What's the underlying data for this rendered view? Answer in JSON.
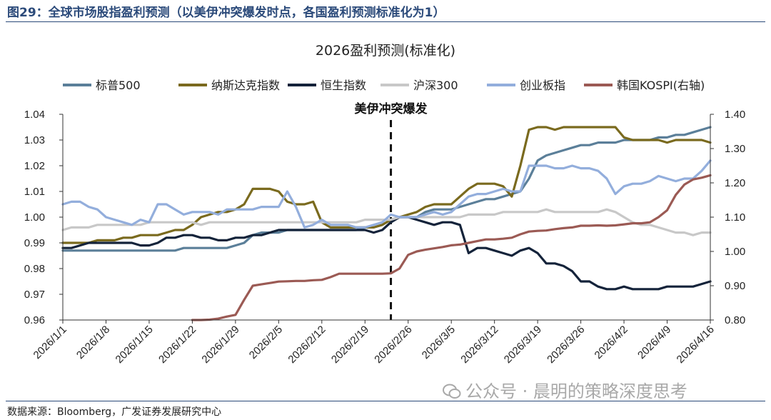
{
  "figure": {
    "title": "图29：全球市场股指盈利预测（以美伊冲突爆发时点，各国盈利预测标准化为1）",
    "source": "数据来源：Bloomberg，广发证券发展研究中心",
    "watermark": "公众号 · 晨明的策略深度思考"
  },
  "chart_data": {
    "type": "line",
    "title": "2026盈利预测(标准化)",
    "event_label": "美伊冲突爆发",
    "event_date_index": 38,
    "x_tick_labels": [
      "2026/1/1",
      "2026/1/8",
      "2026/1/15",
      "2026/1/22",
      "2026/1/29",
      "2026/2/5",
      "2026/2/12",
      "2026/2/19",
      "2026/2/26",
      "2026/3/5",
      "2026/3/12",
      "2026/3/19",
      "2026/3/26",
      "2026/4/2",
      "2026/4/9",
      "2026/4/16"
    ],
    "x_tick_indices": [
      0,
      5,
      10,
      15,
      20,
      25,
      30,
      35,
      40,
      45,
      50,
      55,
      60,
      65,
      70,
      75
    ],
    "x_count": 76,
    "y_left": {
      "min": 0.96,
      "max": 1.04,
      "ticks": [
        "0.96",
        "0.97",
        "0.98",
        "0.99",
        "1.00",
        "1.01",
        "1.02",
        "1.03",
        "1.04"
      ]
    },
    "y_right": {
      "min": 0.8,
      "max": 1.4,
      "ticks": [
        "0.80",
        "0.90",
        "1.00",
        "1.10",
        "1.20",
        "1.30",
        "1.40"
      ]
    },
    "series": [
      {
        "name": "标普500",
        "color": "#5b7f99",
        "axis": "left",
        "values": [
          0.987,
          0.987,
          0.987,
          0.987,
          0.987,
          0.987,
          0.987,
          0.987,
          0.987,
          0.987,
          0.987,
          0.987,
          0.987,
          0.987,
          0.988,
          0.988,
          0.988,
          0.988,
          0.988,
          0.988,
          0.989,
          0.99,
          0.993,
          0.994,
          0.994,
          0.994,
          0.995,
          0.995,
          0.995,
          0.995,
          0.995,
          0.995,
          0.995,
          0.995,
          0.995,
          0.996,
          0.996,
          0.997,
          0.999,
          1.0,
          1.0,
          1.0,
          1.002,
          1.003,
          1.003,
          1.003,
          1.004,
          1.005,
          1.006,
          1.007,
          1.007,
          1.008,
          1.009,
          1.01,
          1.015,
          1.022,
          1.024,
          1.025,
          1.026,
          1.027,
          1.028,
          1.028,
          1.029,
          1.029,
          1.029,
          1.03,
          1.03,
          1.03,
          1.03,
          1.031,
          1.031,
          1.032,
          1.032,
          1.033,
          1.034,
          1.035
        ]
      },
      {
        "name": "纳斯达克指数",
        "color": "#7a6a1e",
        "axis": "left",
        "values": [
          0.99,
          0.99,
          0.99,
          0.99,
          0.991,
          0.991,
          0.991,
          0.992,
          0.992,
          0.993,
          0.993,
          0.993,
          0.994,
          0.995,
          0.995,
          0.997,
          1.0,
          1.001,
          1.002,
          1.002,
          1.003,
          1.005,
          1.011,
          1.011,
          1.011,
          1.01,
          1.006,
          1.005,
          1.005,
          1.006,
          0.998,
          0.996,
          0.996,
          0.996,
          0.996,
          0.996,
          0.996,
          0.997,
          0.999,
          1.0,
          1.001,
          1.002,
          1.004,
          1.005,
          1.005,
          1.005,
          1.008,
          1.011,
          1.013,
          1.013,
          1.013,
          1.012,
          1.008,
          1.02,
          1.034,
          1.035,
          1.035,
          1.034,
          1.035,
          1.035,
          1.035,
          1.035,
          1.035,
          1.035,
          1.035,
          1.031,
          1.03,
          1.03,
          1.03,
          1.03,
          1.029,
          1.03,
          1.03,
          1.03,
          1.03,
          1.029
        ]
      },
      {
        "name": "恒生指数",
        "color": "#14233a",
        "axis": "left",
        "values": [
          0.988,
          0.988,
          0.989,
          0.99,
          0.99,
          0.99,
          0.99,
          0.99,
          0.99,
          0.989,
          0.989,
          0.99,
          0.992,
          0.992,
          0.993,
          0.993,
          0.992,
          0.992,
          0.991,
          0.991,
          0.992,
          0.992,
          0.993,
          0.993,
          0.994,
          0.995,
          0.995,
          0.995,
          0.995,
          0.995,
          0.995,
          0.995,
          0.995,
          0.995,
          0.995,
          0.995,
          0.994,
          0.995,
          0.998,
          1.0,
          1.0,
          0.999,
          0.998,
          0.997,
          0.998,
          0.998,
          0.997,
          0.986,
          0.988,
          0.988,
          0.987,
          0.986,
          0.985,
          0.987,
          0.988,
          0.986,
          0.982,
          0.982,
          0.981,
          0.979,
          0.975,
          0.975,
          0.973,
          0.972,
          0.972,
          0.973,
          0.972,
          0.972,
          0.972,
          0.972,
          0.973,
          0.973,
          0.973,
          0.973,
          0.974,
          0.975
        ]
      },
      {
        "name": "沪深300",
        "color": "#c8c8c8",
        "axis": "left",
        "values": [
          0.995,
          0.996,
          0.996,
          0.996,
          0.997,
          0.997,
          0.997,
          0.997,
          0.997,
          0.997,
          0.998,
          0.998,
          0.998,
          0.998,
          0.998,
          0.998,
          0.997,
          0.998,
          0.998,
          0.998,
          0.998,
          0.998,
          0.998,
          0.998,
          0.998,
          0.998,
          0.998,
          0.998,
          0.998,
          0.998,
          0.998,
          0.998,
          0.998,
          0.998,
          0.998,
          0.999,
          0.999,
          0.999,
          0.999,
          1.0,
          1.0,
          1.0,
          1.0,
          1.0,
          1.0,
          1.0,
          1.0,
          1.001,
          1.001,
          1.001,
          1.001,
          1.002,
          1.002,
          1.002,
          1.002,
          1.002,
          1.003,
          1.002,
          1.002,
          1.002,
          1.002,
          1.002,
          1.002,
          1.003,
          1.002,
          1.0,
          0.998,
          0.997,
          0.997,
          0.996,
          0.995,
          0.994,
          0.994,
          0.993,
          0.994,
          0.994
        ]
      },
      {
        "name": "创业板指",
        "color": "#93aedc",
        "axis": "left",
        "values": [
          1.005,
          1.006,
          1.006,
          1.004,
          1.003,
          1.0,
          0.999,
          0.998,
          0.997,
          0.999,
          0.998,
          1.005,
          1.005,
          1.003,
          1.001,
          1.002,
          1.002,
          1.002,
          1.001,
          1.003,
          1.003,
          1.003,
          1.003,
          1.004,
          1.004,
          1.004,
          1.01,
          1.004,
          0.996,
          0.997,
          0.999,
          0.997,
          0.997,
          0.997,
          0.996,
          0.996,
          0.997,
          0.998,
          1.001,
          1.0,
          1.0,
          1.0,
          1.001,
          1.002,
          1.001,
          1.002,
          1.005,
          1.008,
          1.009,
          1.009,
          1.01,
          1.011,
          1.01,
          1.01,
          1.02,
          1.02,
          1.02,
          1.019,
          1.019,
          1.02,
          1.019,
          1.019,
          1.018,
          1.015,
          1.009,
          1.012,
          1.013,
          1.013,
          1.014,
          1.016,
          1.015,
          1.014,
          1.015,
          1.015,
          1.018,
          1.022
        ]
      },
      {
        "name": "韩国KOSPI(右轴)",
        "color": "#9b5a54",
        "axis": "right",
        "values": [
          null,
          null,
          null,
          null,
          null,
          null,
          null,
          null,
          null,
          null,
          null,
          null,
          null,
          null,
          null,
          0.8,
          0.8,
          0.801,
          0.804,
          0.81,
          0.815,
          0.859,
          0.9,
          0.904,
          0.908,
          0.912,
          0.913,
          0.914,
          0.914,
          0.916,
          0.917,
          0.925,
          0.935,
          0.935,
          0.935,
          0.935,
          0.935,
          0.935,
          0.936,
          0.95,
          0.99,
          1.0,
          1.005,
          1.009,
          1.013,
          1.018,
          1.02,
          1.025,
          1.03,
          1.035,
          1.035,
          1.037,
          1.04,
          1.05,
          1.058,
          1.06,
          1.061,
          1.065,
          1.068,
          1.07,
          1.075,
          1.075,
          1.076,
          1.075,
          1.076,
          1.079,
          1.082,
          1.082,
          1.085,
          1.1,
          1.12,
          1.165,
          1.195,
          1.21,
          1.215,
          1.222
        ]
      }
    ],
    "legend_position": "top"
  }
}
